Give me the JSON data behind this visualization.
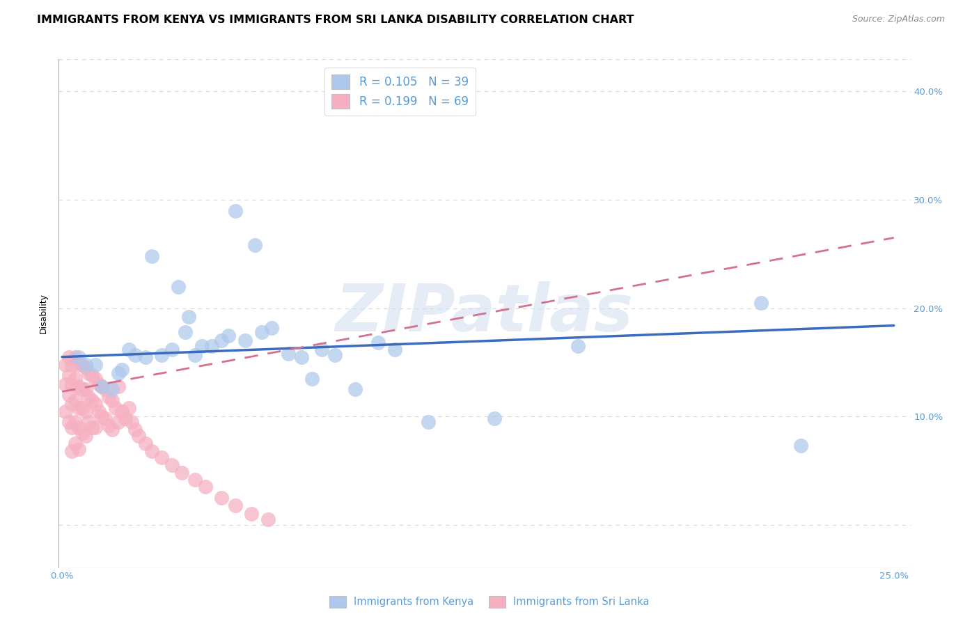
{
  "title": "IMMIGRANTS FROM KENYA VS IMMIGRANTS FROM SRI LANKA DISABILITY CORRELATION CHART",
  "source": "Source: ZipAtlas.com",
  "ylabel": "Disability",
  "xlim": [
    -0.001,
    0.255
  ],
  "ylim": [
    -0.04,
    0.43
  ],
  "xticks": [
    0.0,
    0.05,
    0.1,
    0.15,
    0.2,
    0.25
  ],
  "xtick_labels": [
    "0.0%",
    "",
    "",
    "",
    "",
    "25.0%"
  ],
  "yticks": [
    0.0,
    0.1,
    0.2,
    0.3,
    0.4
  ],
  "ytick_labels": [
    "",
    "10.0%",
    "20.0%",
    "30.0%",
    "40.0%"
  ],
  "kenya_R": 0.105,
  "kenya_N": 39,
  "srilanka_R": 0.199,
  "srilanka_N": 69,
  "kenya_color": "#adc8eb",
  "srilanka_color": "#f5afc0",
  "kenya_line_color": "#3a6bbf",
  "srilanka_line_color": "#d47090",
  "tick_color": "#5b9bd5",
  "title_fontsize": 11.5,
  "source_fontsize": 9,
  "axis_label_fontsize": 9,
  "tick_fontsize": 9.5,
  "legend_fontsize": 12,
  "background_color": "#ffffff",
  "grid_color": "#d8d8d8",
  "watermark_text": "ZIPatlas",
  "legend_label_kenya": "Immigrants from Kenya",
  "legend_label_srilanka": "Immigrants from Sri Lanka",
  "kenya_x": [
    0.005,
    0.007,
    0.01,
    0.012,
    0.015,
    0.017,
    0.018,
    0.02,
    0.022,
    0.025,
    0.027,
    0.03,
    0.033,
    0.035,
    0.037,
    0.038,
    0.04,
    0.042,
    0.045,
    0.048,
    0.05,
    0.052,
    0.055,
    0.058,
    0.06,
    0.063,
    0.068,
    0.072,
    0.075,
    0.078,
    0.082,
    0.088,
    0.095,
    0.1,
    0.11,
    0.13,
    0.155,
    0.21,
    0.222
  ],
  "kenya_y": [
    0.155,
    0.148,
    0.148,
    0.128,
    0.125,
    0.14,
    0.143,
    0.162,
    0.157,
    0.155,
    0.248,
    0.157,
    0.162,
    0.22,
    0.178,
    0.192,
    0.157,
    0.165,
    0.165,
    0.17,
    0.175,
    0.29,
    0.17,
    0.258,
    0.178,
    0.182,
    0.158,
    0.155,
    0.135,
    0.162,
    0.157,
    0.125,
    0.168,
    0.162,
    0.095,
    0.098,
    0.165,
    0.205,
    0.073
  ],
  "srilanka_x": [
    0.001,
    0.001,
    0.001,
    0.002,
    0.002,
    0.002,
    0.002,
    0.003,
    0.003,
    0.003,
    0.003,
    0.003,
    0.004,
    0.004,
    0.004,
    0.004,
    0.004,
    0.005,
    0.005,
    0.005,
    0.005,
    0.005,
    0.006,
    0.006,
    0.006,
    0.006,
    0.007,
    0.007,
    0.007,
    0.007,
    0.008,
    0.008,
    0.008,
    0.009,
    0.009,
    0.009,
    0.01,
    0.01,
    0.01,
    0.011,
    0.011,
    0.012,
    0.012,
    0.013,
    0.013,
    0.014,
    0.014,
    0.015,
    0.015,
    0.016,
    0.017,
    0.017,
    0.018,
    0.019,
    0.02,
    0.021,
    0.022,
    0.023,
    0.025,
    0.027,
    0.03,
    0.033,
    0.036,
    0.04,
    0.043,
    0.048,
    0.052,
    0.057,
    0.062
  ],
  "srilanka_y": [
    0.148,
    0.13,
    0.105,
    0.155,
    0.138,
    0.12,
    0.095,
    0.148,
    0.13,
    0.112,
    0.09,
    0.068,
    0.155,
    0.135,
    0.115,
    0.095,
    0.075,
    0.148,
    0.128,
    0.108,
    0.09,
    0.07,
    0.148,
    0.125,
    0.108,
    0.085,
    0.145,
    0.125,
    0.105,
    0.082,
    0.14,
    0.118,
    0.095,
    0.138,
    0.115,
    0.09,
    0.135,
    0.112,
    0.09,
    0.13,
    0.105,
    0.128,
    0.1,
    0.125,
    0.098,
    0.118,
    0.092,
    0.115,
    0.088,
    0.108,
    0.128,
    0.095,
    0.105,
    0.098,
    0.108,
    0.095,
    0.088,
    0.082,
    0.075,
    0.068,
    0.062,
    0.055,
    0.048,
    0.042,
    0.035,
    0.025,
    0.018,
    0.01,
    0.005
  ]
}
